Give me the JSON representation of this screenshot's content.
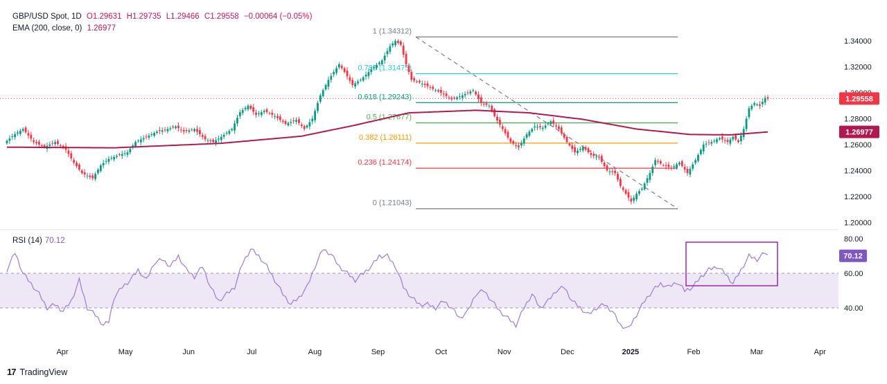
{
  "header": {
    "symbol": "GBP/USD Spot, 1D",
    "o": "O1.29631",
    "h": "H1.29735",
    "l": "L1.29466",
    "c": "C1.29558",
    "change": "−0.00064 (−0.05%)",
    "ema_label": "EMA (200, close, 0)",
    "ema_value": "1.26977"
  },
  "rsi_header": {
    "label": "RSI (14)",
    "value": "70.12"
  },
  "brand": {
    "text": "TradingView"
  },
  "colors": {
    "up": "#089981",
    "down": "#f23645",
    "ema": "#b1184f",
    "rsi": "#9c7bd3",
    "rsi_band": "#ede7f6",
    "fib_1": "#787b86",
    "fib_786": "#26c6da",
    "fib_618": "#089981",
    "fib_5": "#4caf50",
    "fib_382": "#ff9800",
    "fib_236": "#f23645",
    "fib_0": "#787b86",
    "box": "#9c27b0"
  },
  "chart_data": [
    {
      "type": "candlestick",
      "title": "GBP/USD Spot, 1D",
      "x_labels": [
        "Apr",
        "May",
        "Jun",
        "Jul",
        "Aug",
        "Sep",
        "Oct",
        "Nov",
        "Dec",
        "2025",
        "Feb",
        "Mar",
        "Apr"
      ],
      "y_ticks": [
        "1.34000",
        "1.32000",
        "1.30000",
        "1.28000",
        "1.26000",
        "1.24000",
        "1.22000",
        "1.20000"
      ],
      "ylim": [
        1.198,
        1.346
      ],
      "last_price": "1.29558",
      "ema_value_label": "1.26977",
      "fib_levels": [
        {
          "label": "1 (1.34312)",
          "value": 1.34312
        },
        {
          "label": "0.786 (1.31475)",
          "value": 1.31475
        },
        {
          "label": "0.618 (1.29243)",
          "value": 1.29243
        },
        {
          "label": "0.5 (1.27677)",
          "value": 1.27677
        },
        {
          "label": "0.382 (1.26111)",
          "value": 1.26111
        },
        {
          "label": "0.236 (1.24174)",
          "value": 1.24174
        },
        {
          "label": "0 (1.21043)",
          "value": 1.21043
        }
      ],
      "closes_anchor": [
        [
          0,
          1.263
        ],
        [
          3,
          1.268
        ],
        [
          6,
          1.272
        ],
        [
          10,
          1.262
        ],
        [
          14,
          1.258
        ],
        [
          18,
          1.262
        ],
        [
          22,
          1.256
        ],
        [
          25,
          1.246
        ],
        [
          28,
          1.238
        ],
        [
          32,
          1.234
        ],
        [
          35,
          1.244
        ],
        [
          38,
          1.249
        ],
        [
          42,
          1.252
        ],
        [
          45,
          1.254
        ],
        [
          48,
          1.262
        ],
        [
          52,
          1.266
        ],
        [
          56,
          1.27
        ],
        [
          60,
          1.272
        ],
        [
          63,
          1.274
        ],
        [
          66,
          1.27
        ],
        [
          70,
          1.272
        ],
        [
          74,
          1.264
        ],
        [
          77,
          1.262
        ],
        [
          80,
          1.266
        ],
        [
          84,
          1.272
        ],
        [
          87,
          1.285
        ],
        [
          90,
          1.29
        ],
        [
          93,
          1.283
        ],
        [
          96,
          1.286
        ],
        [
          100,
          1.282
        ],
        [
          104,
          1.276
        ],
        [
          108,
          1.279
        ],
        [
          111,
          1.272
        ],
        [
          114,
          1.28
        ],
        [
          117,
          1.298
        ],
        [
          120,
          1.31
        ],
        [
          124,
          1.322
        ],
        [
          126,
          1.316
        ],
        [
          129,
          1.306
        ],
        [
          132,
          1.31
        ],
        [
          136,
          1.318
        ],
        [
          140,
          1.325
        ],
        [
          143,
          1.336
        ],
        [
          145,
          1.34
        ],
        [
          147,
          1.337
        ],
        [
          149,
          1.322
        ],
        [
          151,
          1.31
        ],
        [
          154,
          1.308
        ],
        [
          158,
          1.304
        ],
        [
          162,
          1.3
        ],
        [
          166,
          1.295
        ],
        [
          170,
          1.298
        ],
        [
          174,
          1.302
        ],
        [
          177,
          1.292
        ],
        [
          180,
          1.29
        ],
        [
          182,
          1.282
        ],
        [
          185,
          1.272
        ],
        [
          188,
          1.262
        ],
        [
          191,
          1.258
        ],
        [
          194,
          1.268
        ],
        [
          197,
          1.274
        ],
        [
          200,
          1.273
        ],
        [
          203,
          1.278
        ],
        [
          206,
          1.272
        ],
        [
          209,
          1.262
        ],
        [
          212,
          1.254
        ],
        [
          215,
          1.258
        ],
        [
          218,
          1.252
        ],
        [
          221,
          1.25
        ],
        [
          224,
          1.24
        ],
        [
          227,
          1.238
        ],
        [
          229,
          1.228
        ],
        [
          231,
          1.222
        ],
        [
          233,
          1.216
        ],
        [
          235,
          1.222
        ],
        [
          237,
          1.226
        ],
        [
          240,
          1.238
        ],
        [
          242,
          1.248
        ],
        [
          245,
          1.244
        ],
        [
          248,
          1.242
        ],
        [
          251,
          1.246
        ],
        [
          254,
          1.238
        ],
        [
          257,
          1.248
        ],
        [
          260,
          1.26
        ],
        [
          263,
          1.262
        ],
        [
          266,
          1.265
        ],
        [
          269,
          1.262
        ],
        [
          271,
          1.266
        ],
        [
          273,
          1.262
        ],
        [
          275,
          1.272
        ],
        [
          277,
          1.288
        ],
        [
          279,
          1.292
        ],
        [
          281,
          1.29
        ],
        [
          283,
          1.296
        ],
        [
          284,
          1.29558
        ]
      ],
      "ema200_anchor": [
        [
          0,
          1.258
        ],
        [
          40,
          1.2575
        ],
        [
          80,
          1.261
        ],
        [
          110,
          1.2665
        ],
        [
          130,
          1.275
        ],
        [
          150,
          1.2845
        ],
        [
          175,
          1.2865
        ],
        [
          195,
          1.2845
        ],
        [
          215,
          1.2795
        ],
        [
          235,
          1.272
        ],
        [
          255,
          1.2678
        ],
        [
          270,
          1.2675
        ],
        [
          284,
          1.26977
        ]
      ]
    },
    {
      "type": "line",
      "title": "RSI (14)",
      "y_ticks": [
        "80.00",
        "60.00",
        "40.00"
      ],
      "ylim": [
        26,
        82
      ],
      "band": [
        40,
        60
      ],
      "last_value": "70.12",
      "rsi_anchor": [
        [
          0,
          62
        ],
        [
          3,
          72
        ],
        [
          6,
          60
        ],
        [
          9,
          54
        ],
        [
          12,
          48
        ],
        [
          15,
          40
        ],
        [
          18,
          42
        ],
        [
          21,
          38
        ],
        [
          24,
          44
        ],
        [
          27,
          56
        ],
        [
          30,
          40
        ],
        [
          33,
          36
        ],
        [
          36,
          30
        ],
        [
          38,
          32
        ],
        [
          40,
          46
        ],
        [
          43,
          52
        ],
        [
          46,
          56
        ],
        [
          49,
          62
        ],
        [
          52,
          56
        ],
        [
          55,
          66
        ],
        [
          58,
          68
        ],
        [
          61,
          64
        ],
        [
          64,
          70
        ],
        [
          67,
          62
        ],
        [
          70,
          58
        ],
        [
          73,
          64
        ],
        [
          76,
          52
        ],
        [
          79,
          44
        ],
        [
          82,
          48
        ],
        [
          85,
          52
        ],
        [
          88,
          66
        ],
        [
          91,
          74
        ],
        [
          94,
          70
        ],
        [
          97,
          64
        ],
        [
          100,
          56
        ],
        [
          103,
          48
        ],
        [
          106,
          42
        ],
        [
          109,
          46
        ],
        [
          112,
          52
        ],
        [
          115,
          64
        ],
        [
          118,
          74
        ],
        [
          121,
          71
        ],
        [
          124,
          64
        ],
        [
          127,
          60
        ],
        [
          130,
          56
        ],
        [
          133,
          60
        ],
        [
          136,
          64
        ],
        [
          139,
          70
        ],
        [
          142,
          70
        ],
        [
          145,
          64
        ],
        [
          148,
          52
        ],
        [
          151,
          46
        ],
        [
          154,
          42
        ],
        [
          157,
          42
        ],
        [
          160,
          40
        ],
        [
          163,
          44
        ],
        [
          166,
          40
        ],
        [
          169,
          34
        ],
        [
          172,
          38
        ],
        [
          175,
          48
        ],
        [
          178,
          50
        ],
        [
          181,
          44
        ],
        [
          184,
          38
        ],
        [
          187,
          34
        ],
        [
          190,
          30
        ],
        [
          193,
          40
        ],
        [
          196,
          48
        ],
        [
          199,
          40
        ],
        [
          202,
          44
        ],
        [
          205,
          50
        ],
        [
          208,
          52
        ],
        [
          211,
          44
        ],
        [
          214,
          40
        ],
        [
          217,
          36
        ],
        [
          220,
          40
        ],
        [
          223,
          42
        ],
        [
          226,
          38
        ],
        [
          229,
          30
        ],
        [
          232,
          28
        ],
        [
          235,
          36
        ],
        [
          238,
          44
        ],
        [
          241,
          50
        ],
        [
          244,
          54
        ],
        [
          247,
          52
        ],
        [
          250,
          55
        ],
        [
          253,
          50
        ],
        [
          256,
          52
        ],
        [
          259,
          58
        ],
        [
          262,
          62
        ],
        [
          265,
          64
        ],
        [
          268,
          60
        ],
        [
          271,
          54
        ],
        [
          274,
          62
        ],
        [
          277,
          70
        ],
        [
          280,
          68
        ],
        [
          283,
          72
        ],
        [
          284,
          70.12
        ]
      ]
    }
  ]
}
